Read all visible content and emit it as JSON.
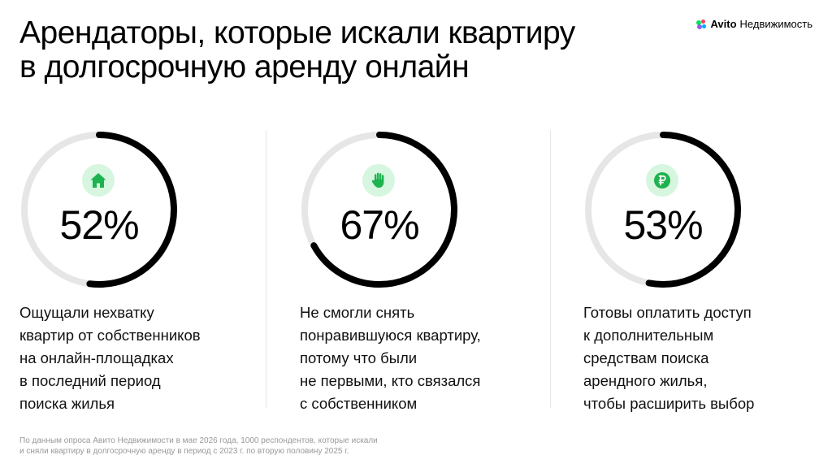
{
  "header": {
    "title_lines": [
      "Арендаторы, которые искали квартиру",
      "в долгосрочную аренду онлайн"
    ],
    "brand": {
      "name": "Avito",
      "suffix": "Недвижимость"
    }
  },
  "colors": {
    "ring_track": "#e6e6e6",
    "ring_progress": "#000000",
    "icon_bg": "#d6f6df",
    "icon_fg": "#1db34e",
    "footnote": "#999999"
  },
  "chart_data": {
    "type": "donut",
    "items": [
      {
        "value": 52,
        "label": "52%",
        "icon": "house-icon",
        "description_lines": [
          "Ощущали нехватку",
          "квартир от собственников",
          "на онлайн-площадках",
          "в последний период",
          "поиска жилья"
        ]
      },
      {
        "value": 67,
        "label": "67%",
        "icon": "hand-icon",
        "description_lines": [
          "Не смогли снять",
          "понравившуюся квартиру,",
          "потому что были",
          "не первыми, кто связался",
          "с собственником"
        ]
      },
      {
        "value": 53,
        "label": "53%",
        "icon": "ruble-icon",
        "description_lines": [
          "Готовы оплатить доступ",
          "к дополнительным",
          "средствам поиска",
          "арендного жилья,",
          "чтобы расширить выбор"
        ]
      }
    ]
  },
  "footnote_lines": [
    "По данным опроса Авито Недвижимости в мае 2026 года, 1000 респондентов, которые искали",
    "и сняли квартиру в долгосрочную аренду в период с 2023 г. по вторую половину 2025 г."
  ]
}
